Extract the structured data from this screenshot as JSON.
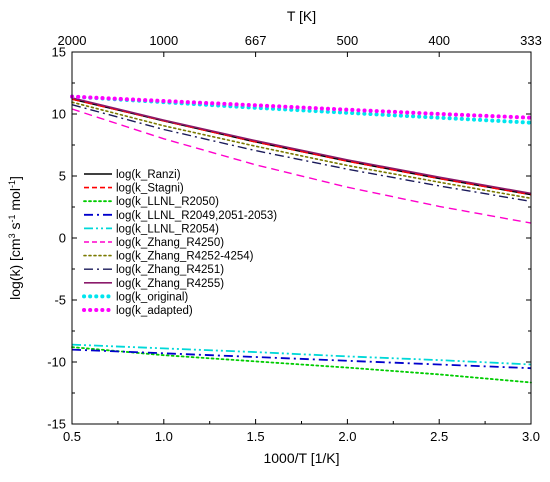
{
  "chart_data": {
    "type": "line",
    "xlabel": "1000/T [1/K]",
    "ylabel": "log(k) [cm³ s⁻¹ mol⁻¹]",
    "ylabel_parts": {
      "base": "log(k) [cm",
      "exp1": "3",
      "mid1": " s",
      "exp2": "-1",
      "mid2": " mol",
      "exp3": "-1",
      "end": "]"
    },
    "top_axis_label": "T [K]",
    "xlim": [
      0.5,
      3.0
    ],
    "ylim": [
      -15,
      15
    ],
    "x_ticks": [
      "0.5",
      "1.0",
      "1.5",
      "2.0",
      "2.5",
      "3.0"
    ],
    "y_ticks": [
      "15",
      "10",
      "5",
      "0",
      "-5",
      "-10",
      "-15"
    ],
    "top_ticks": [
      {
        "label": "2000",
        "x": 0.5
      },
      {
        "label": "1000",
        "x": 1.0
      },
      {
        "label": "667",
        "x": 1.5
      },
      {
        "label": "500",
        "x": 2.0
      },
      {
        "label": "400",
        "x": 2.5
      },
      {
        "label": "333",
        "x": 3.0
      }
    ],
    "legend_position": "left",
    "grid": false,
    "series": [
      {
        "name": "log(k_Ranzi)",
        "color": "#000000",
        "dash": "solid",
        "width": 1.6,
        "x": [
          0.5,
          1.0,
          1.5,
          2.0,
          2.5,
          3.0
        ],
        "y": [
          11.2,
          9.45,
          7.75,
          6.2,
          4.8,
          3.5
        ]
      },
      {
        "name": "log(k_Stagni)",
        "color": "#ff0000",
        "dash": "dash",
        "width": 1.6,
        "x": [
          0.5,
          1.0,
          1.5,
          2.0,
          2.5,
          3.0
        ],
        "y": [
          11.2,
          9.45,
          7.75,
          6.2,
          4.8,
          3.5
        ]
      },
      {
        "name": "log(k_LLNL_R2050)",
        "color": "#00cc00",
        "dash": "dot",
        "width": 1.8,
        "x": [
          0.5,
          1.0,
          1.5,
          2.0,
          2.5,
          3.0
        ],
        "y": [
          -8.8,
          -9.45,
          -9.95,
          -10.45,
          -11.0,
          -11.65
        ]
      },
      {
        "name": "log(k_LLNL_R2049,2051-2053)",
        "color": "#0000cc",
        "dash": "dashdot",
        "width": 1.8,
        "x": [
          0.5,
          1.0,
          1.5,
          2.0,
          2.5,
          3.0
        ],
        "y": [
          -9.0,
          -9.3,
          -9.6,
          -9.9,
          -10.2,
          -10.5
        ]
      },
      {
        "name": "log(k_LLNL_R2054)",
        "color": "#00d8d8",
        "dash": "dashdotdot",
        "width": 1.8,
        "x": [
          0.5,
          1.0,
          1.5,
          2.0,
          2.5,
          3.0
        ],
        "y": [
          -8.6,
          -8.9,
          -9.2,
          -9.55,
          -9.85,
          -10.2
        ]
      },
      {
        "name": "log(k_Zhang_R4250)",
        "color": "#ff00cc",
        "dash": "dash",
        "width": 1.4,
        "x": [
          0.5,
          1.0,
          1.5,
          2.0,
          2.5,
          3.0
        ],
        "y": [
          10.4,
          8.0,
          5.9,
          4.1,
          2.55,
          1.2
        ]
      },
      {
        "name": "log(k_Zhang_R4252-4254)",
        "color": "#7a7a00",
        "dash": "dot",
        "width": 1.6,
        "x": [
          0.5,
          1.0,
          1.5,
          2.0,
          2.5,
          3.0
        ],
        "y": [
          10.95,
          9.05,
          7.4,
          5.85,
          4.5,
          3.2
        ]
      },
      {
        "name": "log(k_Zhang_R4251)",
        "color": "#1a1a5a",
        "dash": "dashdot",
        "width": 1.4,
        "x": [
          0.5,
          1.0,
          1.5,
          2.0,
          2.5,
          3.0
        ],
        "y": [
          10.75,
          8.75,
          7.05,
          5.55,
          4.2,
          2.95
        ]
      },
      {
        "name": "log(k_Zhang_R4255)",
        "color": "#8b1a6b",
        "dash": "solid",
        "width": 1.6,
        "x": [
          0.5,
          1.0,
          1.5,
          2.0,
          2.5,
          3.0
        ],
        "y": [
          11.3,
          9.5,
          7.85,
          6.3,
          4.9,
          3.6
        ]
      },
      {
        "name": "log(k_original)",
        "color": "#00e5ee",
        "dash": "bigdot",
        "width": 4,
        "x": [
          0.5,
          1.0,
          1.5,
          2.0,
          2.5,
          3.0
        ],
        "y": [
          11.4,
          10.95,
          10.5,
          10.1,
          9.7,
          9.3
        ]
      },
      {
        "name": "log(k_adapted)",
        "color": "#ff00ff",
        "dash": "bigdot",
        "width": 4,
        "x": [
          0.5,
          1.0,
          1.5,
          2.0,
          2.5,
          3.0
        ],
        "y": [
          11.4,
          11.05,
          10.7,
          10.35,
          10.0,
          9.7
        ]
      }
    ]
  }
}
